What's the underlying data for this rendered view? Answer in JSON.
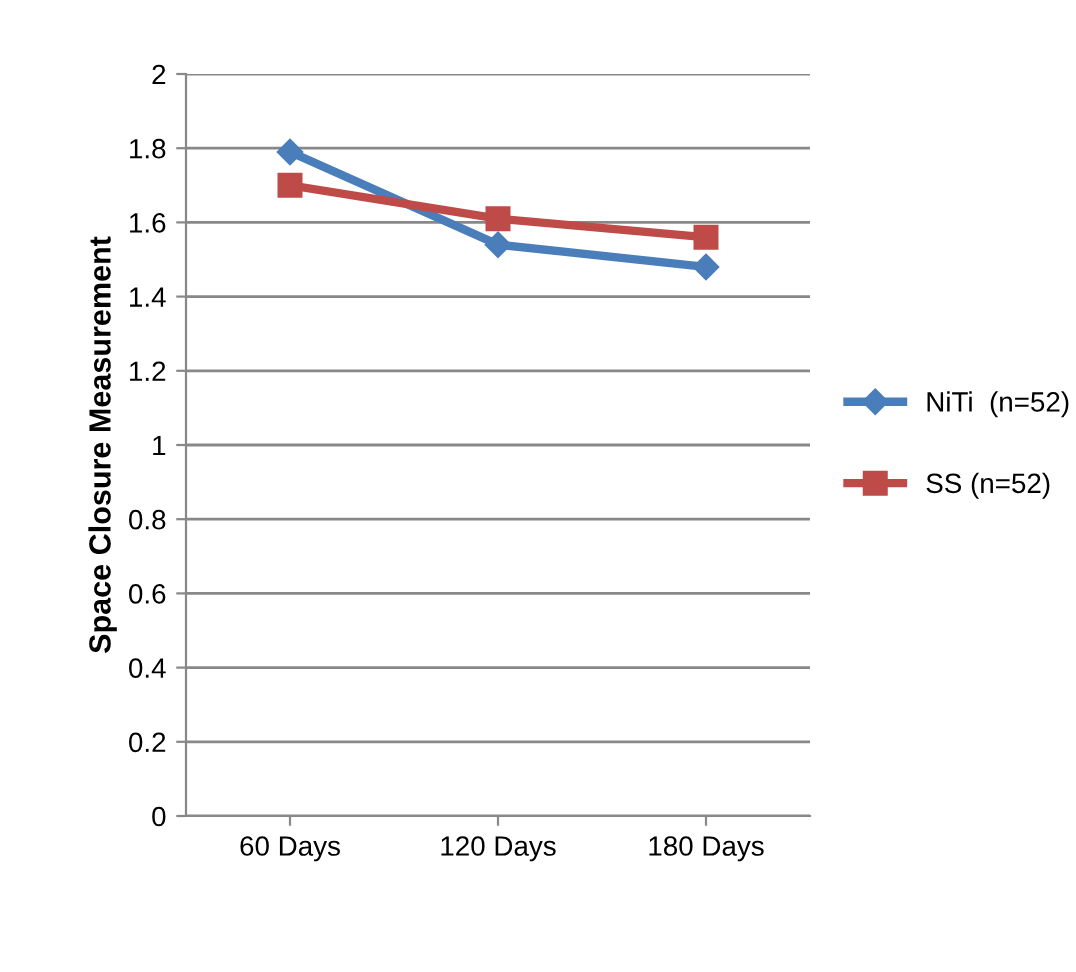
{
  "chart_data": {
    "type": "line",
    "ylabel": "Space Closure Measurement",
    "categories": [
      "60 Days",
      "120 Days",
      "180 Days"
    ],
    "series": [
      {
        "name": "NiTi  (n=52)",
        "color": "#4a7ebb",
        "values": [
          1.79,
          1.54,
          1.48
        ],
        "marker": "diamond"
      },
      {
        "name": "SS (n=52)",
        "color": "#be4b48",
        "values": [
          1.7,
          1.61,
          1.56
        ],
        "marker": "square"
      }
    ],
    "ylim": [
      0,
      2
    ],
    "yticks": [
      0,
      0.2,
      0.4,
      0.6,
      0.8,
      1,
      1.2,
      1.4,
      1.6,
      1.8,
      2
    ],
    "grid": "y",
    "legend": "right"
  }
}
